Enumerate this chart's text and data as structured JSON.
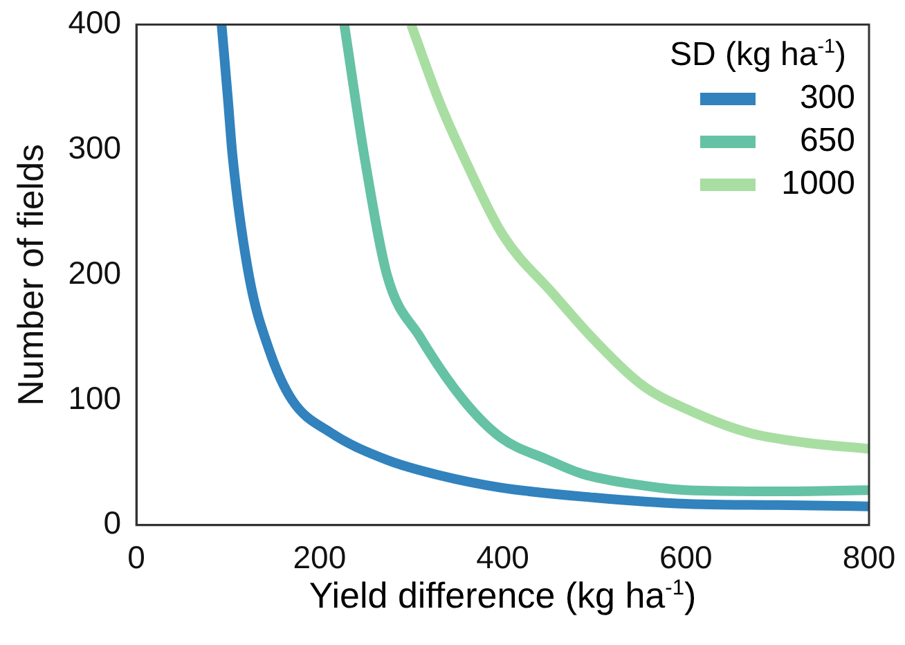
{
  "chart_data": {
    "type": "line",
    "xlabel": "Yield difference (kg ha$^{-1}$)",
    "ylabel": "Number of fields",
    "legend_title": "SD (kg ha$^{-1}$)",
    "xlim": [
      0,
      800
    ],
    "ylim": [
      0,
      400
    ],
    "xticks": [
      0,
      200,
      400,
      600,
      800
    ],
    "yticks": [
      0,
      100,
      200,
      300,
      400
    ],
    "grid": false,
    "legend": "top right",
    "marker": "none",
    "line_style": "solid",
    "series": [
      {
        "name": "300",
        "color": "#3182bd",
        "x": [
          93,
          100,
          105,
          123,
          145,
          170,
          212,
          274,
          330,
          398,
          500,
          600,
          700,
          800
        ],
        "values": [
          400,
          340,
          295,
          199,
          140,
          100,
          74,
          52,
          40,
          30,
          22,
          17,
          16,
          15
        ]
      },
      {
        "name": "650",
        "color": "#66c2a4",
        "x": [
          227,
          250,
          274,
          310,
          357,
          398,
          450,
          487,
          550,
          600,
          700,
          800
        ],
        "values": [
          400,
          290,
          199,
          150,
          100,
          70,
          52,
          41,
          32,
          28,
          27,
          28
        ]
      },
      {
        "name": "1000",
        "color": "#a8dea2",
        "x": [
          300,
          330,
          357,
          400,
          455,
          500,
          554,
          600,
          668,
          730,
          800
        ],
        "values": [
          400,
          340,
          295,
          232,
          185,
          148,
          111,
          93,
          74,
          66,
          61
        ]
      }
    ]
  }
}
